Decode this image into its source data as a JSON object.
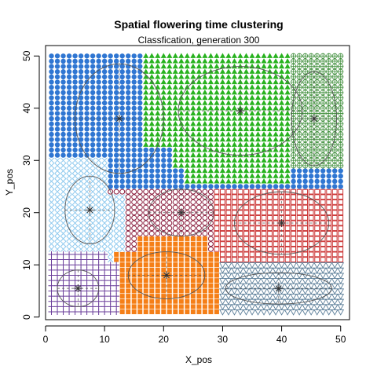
{
  "chart_data": {
    "type": "scatter",
    "title": "Spatial flowering time clustering",
    "subtitle": "Classfication, generation 300",
    "xlabel": "X_pos",
    "ylabel": "Y_pos",
    "xlim": [
      0,
      51.5
    ],
    "ylim": [
      -0.5,
      52
    ],
    "x_ticks": [
      0,
      10,
      20,
      30,
      40,
      50
    ],
    "y_ticks": [
      0,
      10,
      20,
      30,
      40,
      50
    ],
    "grid": false,
    "legend": "none",
    "grid_spacing": 1,
    "grid_extent": {
      "x": [
        1,
        50
      ],
      "y": [
        1,
        50
      ]
    },
    "clusters": [
      {
        "id": 1,
        "marker": "filled-circle",
        "color": "#2F76D2",
        "center": [
          12.5,
          38
        ],
        "radii": [
          7.5,
          10.5
        ],
        "region": "upper-left"
      },
      {
        "id": 2,
        "marker": "filled-triangle",
        "color": "#28B21F",
        "center": [
          33,
          39.5
        ],
        "radii": [
          10.5,
          8.5
        ],
        "region": "upper-middle"
      },
      {
        "id": 3,
        "marker": "circle-plus",
        "color": "#3E8E3A",
        "center": [
          45.5,
          38
        ],
        "radii": [
          3.8,
          9
        ],
        "region": "upper-right"
      },
      {
        "id": 4,
        "marker": "cross-x",
        "color": "#8EC9EE",
        "center": [
          7.5,
          20.5
        ],
        "radii": [
          4.2,
          6.5
        ],
        "region": "middle-left"
      },
      {
        "id": 5,
        "marker": "open-circle",
        "color": "#8A1E3E",
        "center": [
          23,
          20
        ],
        "radii": [
          5.5,
          4.5
        ],
        "region": "center"
      },
      {
        "id": 6,
        "marker": "open-square",
        "color": "#CC3737",
        "center": [
          40,
          18
        ],
        "radii": [
          8,
          6
        ],
        "region": "middle-right"
      },
      {
        "id": 7,
        "marker": "plus",
        "color": "#6A3D9A",
        "center": [
          5.5,
          5.5
        ],
        "radii": [
          3.5,
          3.5
        ],
        "region": "lower-left"
      },
      {
        "id": 8,
        "marker": "filled-square",
        "color": "#F57F17",
        "center": [
          20.5,
          8
        ],
        "radii": [
          6.5,
          4.5
        ],
        "region": "lower-middle"
      },
      {
        "id": 9,
        "marker": "open-triangle-down",
        "color": "#5A7D98",
        "center": [
          39.5,
          5.5
        ],
        "radii": [
          9,
          3
        ],
        "region": "lower-right"
      }
    ]
  }
}
